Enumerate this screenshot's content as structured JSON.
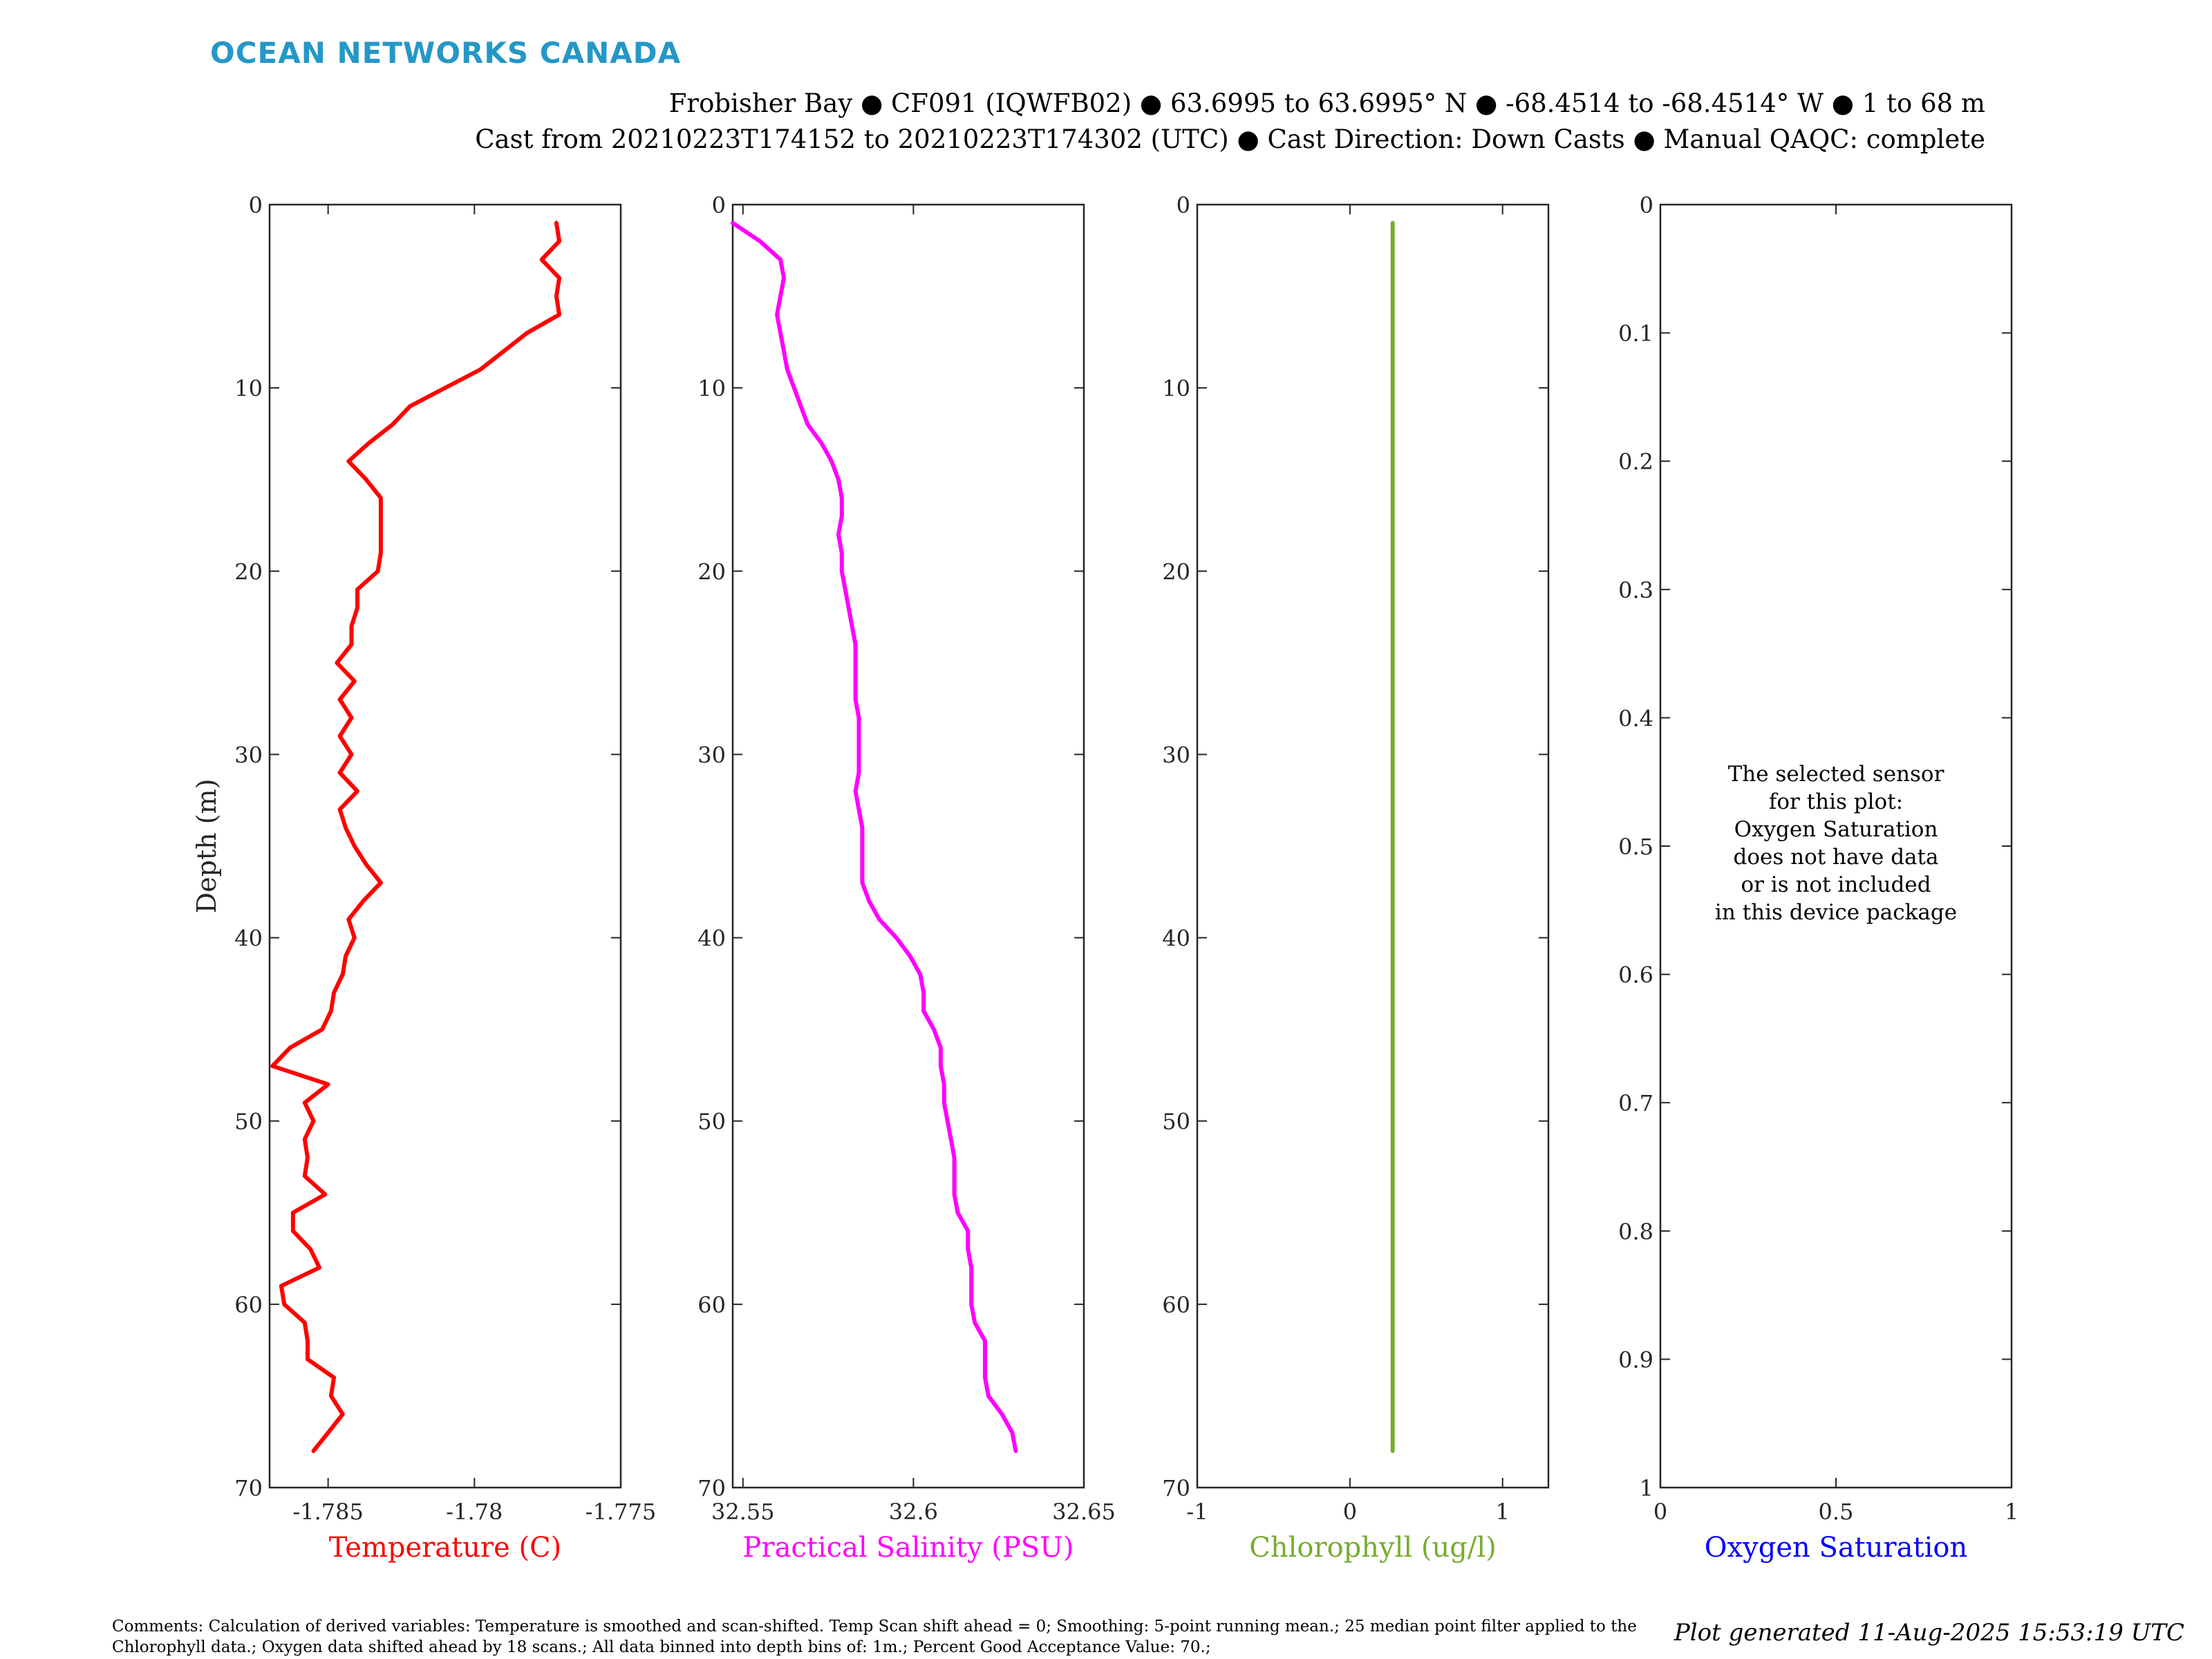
{
  "brand": {
    "name": "OCEAN NETWORKS CANADA",
    "color": "#2597c6"
  },
  "header": {
    "line1": "Frobisher Bay ● CF091 (IQWFB02) ● 63.6995 to 63.6995° N ● -68.4514 to -68.4514° W ● 1 to 68 m",
    "line2": "Cast from 20210223T174152 to 20210223T174302 (UTC) ● Cast Direction: Down Casts ● Manual QAQC: complete"
  },
  "footer": {
    "comments": "Comments: Calculation of derived variables: Temperature is smoothed and scan-shifted. Temp Scan shift ahead = 0; Smoothing: 5-point running mean.; 25 median point filter applied to the Chlorophyll data.; Oxygen data shifted ahead by 18 scans.; All data binned into depth bins of: 1m.; Percent Good Acceptance Value: 70.;",
    "generated": "Plot generated 11-Aug-2025 15:53:19 UTC"
  },
  "chart_data": [
    {
      "type": "line",
      "xlabel": "Temperature (C)",
      "ylabel": "Depth (m)",
      "color": "#ff0000",
      "xlim": [
        -1.787,
        -1.775
      ],
      "ylim": [
        0,
        70
      ],
      "y_reversed": true,
      "xticks": [
        -1.785,
        -1.78,
        -1.775
      ],
      "xticklabels": [
        "-1.785",
        "-1.78",
        "-1.775"
      ],
      "yticks": [
        0,
        10,
        20,
        30,
        40,
        50,
        60,
        70
      ],
      "yticklabels": [
        "0",
        "10",
        "20",
        "30",
        "40",
        "50",
        "60",
        "70"
      ],
      "series": [
        {
          "depth": [
            1,
            2,
            3,
            4,
            5,
            6,
            7,
            8,
            9,
            10,
            11,
            12,
            13,
            14,
            15,
            16,
            17,
            18,
            19,
            20,
            21,
            22,
            23,
            24,
            25,
            26,
            27,
            28,
            29,
            30,
            31,
            32,
            33,
            34,
            35,
            36,
            37,
            38,
            39,
            40,
            41,
            42,
            43,
            44,
            45,
            46,
            47,
            48,
            49,
            50,
            51,
            52,
            53,
            54,
            55,
            56,
            57,
            58,
            59,
            60,
            61,
            62,
            63,
            64,
            65,
            66,
            67,
            68
          ],
          "values": [
            -1.7772,
            -1.7771,
            -1.7777,
            -1.7771,
            -1.7772,
            -1.7771,
            -1.7782,
            -1.779,
            -1.7798,
            -1.781,
            -1.7822,
            -1.7828,
            -1.7836,
            -1.7843,
            -1.7837,
            -1.7832,
            -1.7832,
            -1.7832,
            -1.7832,
            -1.7833,
            -1.784,
            -1.784,
            -1.7842,
            -1.7842,
            -1.7847,
            -1.7841,
            -1.7846,
            -1.7842,
            -1.7846,
            -1.7842,
            -1.7846,
            -1.784,
            -1.7846,
            -1.7844,
            -1.7841,
            -1.7837,
            -1.7832,
            -1.7838,
            -1.7843,
            -1.7841,
            -1.7844,
            -1.7845,
            -1.7848,
            -1.7849,
            -1.7852,
            -1.7863,
            -1.7869,
            -1.785,
            -1.7858,
            -1.7855,
            -1.7858,
            -1.7857,
            -1.7858,
            -1.7851,
            -1.7862,
            -1.7862,
            -1.7856,
            -1.7853,
            -1.7866,
            -1.7865,
            -1.7858,
            -1.7857,
            -1.7857,
            -1.7848,
            -1.7849,
            -1.7845,
            -1.785,
            -1.7855
          ]
        }
      ]
    },
    {
      "type": "line",
      "xlabel": "Practical Salinity (PSU)",
      "color": "#ff00ff",
      "xlim": [
        32.547,
        32.65
      ],
      "ylim": [
        0,
        70
      ],
      "y_reversed": true,
      "xticks": [
        32.55,
        32.6,
        32.65
      ],
      "xticklabels": [
        "32.55",
        "32.6",
        "32.65"
      ],
      "yticks": [
        0,
        10,
        20,
        30,
        40,
        50,
        60,
        70
      ],
      "yticklabels": [
        "0",
        "10",
        "20",
        "30",
        "40",
        "50",
        "60",
        "70"
      ],
      "series": [
        {
          "depth": [
            1,
            2,
            3,
            4,
            5,
            6,
            7,
            8,
            9,
            10,
            11,
            12,
            13,
            14,
            15,
            16,
            17,
            18,
            19,
            20,
            21,
            22,
            23,
            24,
            25,
            26,
            27,
            28,
            29,
            30,
            31,
            32,
            33,
            34,
            35,
            36,
            37,
            38,
            39,
            40,
            41,
            42,
            43,
            44,
            45,
            46,
            47,
            48,
            49,
            50,
            51,
            52,
            53,
            54,
            55,
            56,
            57,
            58,
            59,
            60,
            61,
            62,
            63,
            64,
            65,
            66,
            67,
            68
          ],
          "values": [
            32.547,
            32.555,
            32.561,
            32.562,
            32.561,
            32.56,
            32.561,
            32.562,
            32.563,
            32.565,
            32.567,
            32.569,
            32.573,
            32.576,
            32.578,
            32.579,
            32.579,
            32.578,
            32.579,
            32.579,
            32.58,
            32.581,
            32.582,
            32.583,
            32.583,
            32.583,
            32.583,
            32.584,
            32.584,
            32.584,
            32.584,
            32.583,
            32.584,
            32.585,
            32.585,
            32.585,
            32.585,
            32.587,
            32.59,
            32.595,
            32.599,
            32.602,
            32.603,
            32.603,
            32.606,
            32.608,
            32.608,
            32.609,
            32.609,
            32.61,
            32.611,
            32.612,
            32.612,
            32.612,
            32.613,
            32.616,
            32.616,
            32.617,
            32.617,
            32.617,
            32.618,
            32.621,
            32.621,
            32.621,
            32.622,
            32.626,
            32.629,
            32.63
          ]
        }
      ]
    },
    {
      "type": "line",
      "xlabel": "Chlorophyll (ug/l)",
      "color": "#77ac30",
      "xlim": [
        -1,
        1.3
      ],
      "ylim": [
        0,
        70
      ],
      "y_reversed": true,
      "xticks": [
        -1,
        0,
        1
      ],
      "xticklabels": [
        "-1",
        "0",
        "1"
      ],
      "yticks": [
        0,
        10,
        20,
        30,
        40,
        50,
        60,
        70
      ],
      "yticklabels": [
        "0",
        "10",
        "20",
        "30",
        "40",
        "50",
        "60",
        "70"
      ],
      "series": [
        {
          "depth": [
            1,
            68
          ],
          "values": [
            0.28,
            0.28
          ]
        }
      ]
    },
    {
      "type": "line",
      "xlabel": "Oxygen Saturation",
      "color": "#0000ff",
      "xlim": [
        0,
        1
      ],
      "ylim": [
        0,
        1
      ],
      "y_reversed": true,
      "xticks": [
        0,
        0.5,
        1
      ],
      "xticklabels": [
        "0",
        "0.5",
        "1"
      ],
      "yticks": [
        0,
        0.1,
        0.2,
        0.3,
        0.4,
        0.5,
        0.6,
        0.7,
        0.8,
        0.9,
        1
      ],
      "yticklabels": [
        "0",
        "0.1",
        "0.2",
        "0.3",
        "0.4",
        "0.5",
        "0.6",
        "0.7",
        "0.8",
        "0.9",
        "1"
      ],
      "message": [
        "The selected sensor",
        "for this plot:",
        "Oxygen Saturation",
        "does not have data",
        "or is not included",
        "in this device package"
      ],
      "series": []
    }
  ]
}
